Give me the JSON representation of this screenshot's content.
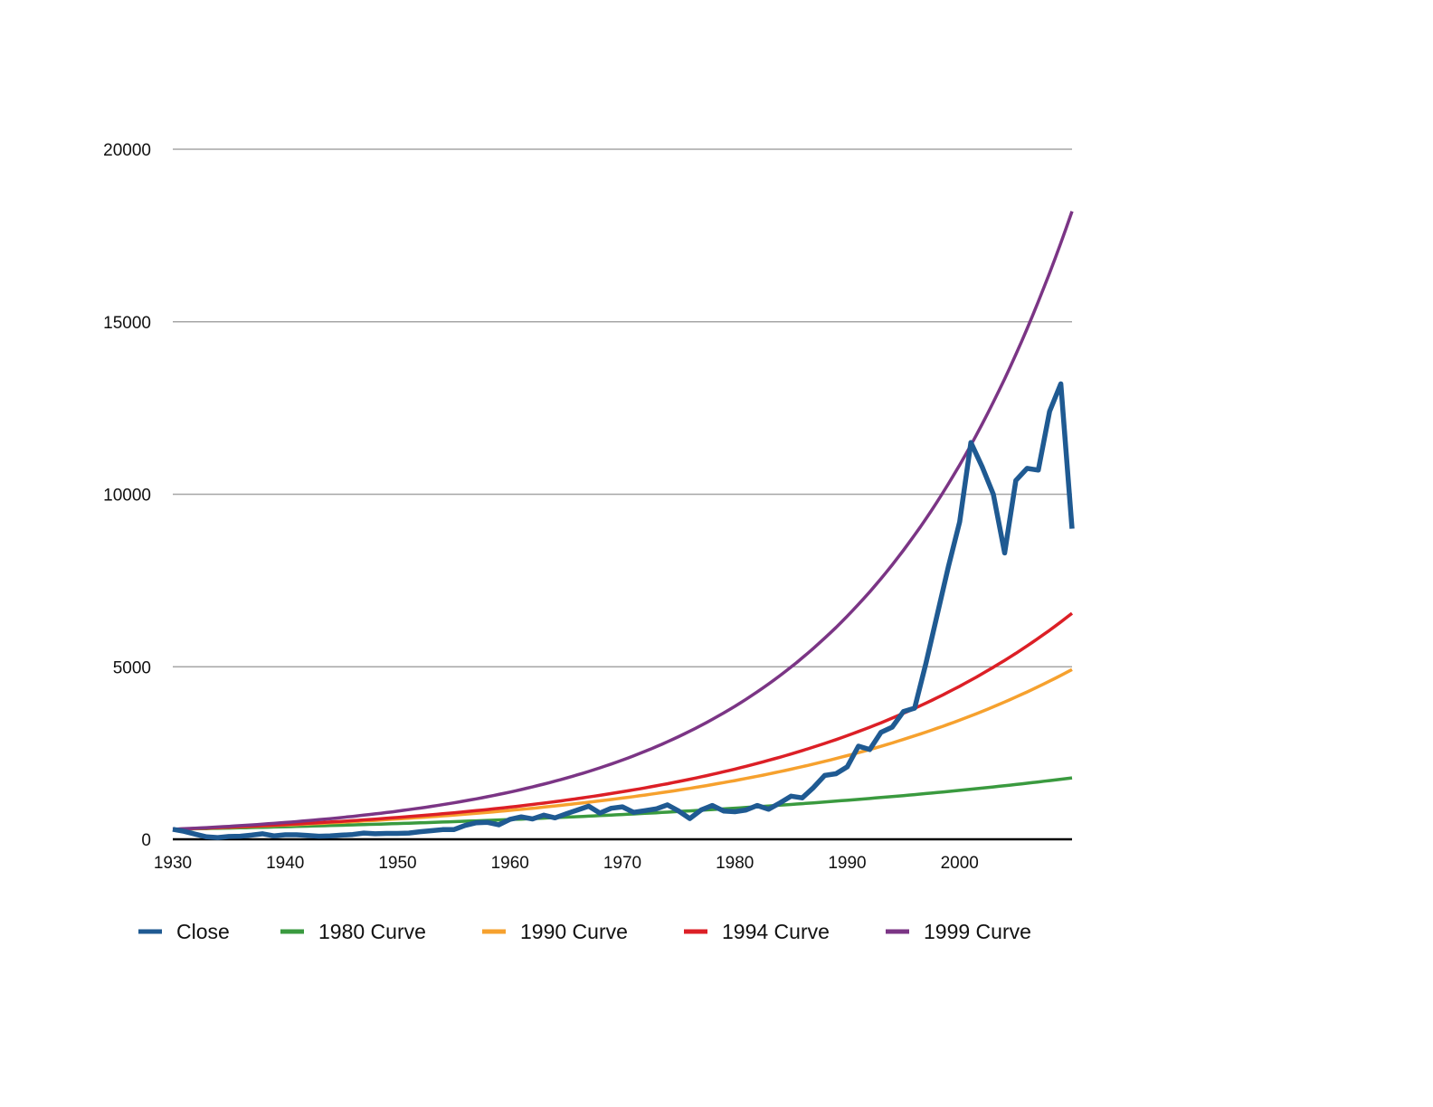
{
  "chart_data": {
    "type": "line",
    "title": "",
    "xlabel": "",
    "ylabel": "",
    "xlim": [
      1930,
      2010
    ],
    "ylim": [
      0,
      20000
    ],
    "x_ticks": [
      1930,
      1940,
      1950,
      1960,
      1970,
      1980,
      1990,
      2000
    ],
    "x_tick_labels": [
      "1930",
      "1940",
      "1950",
      "1960",
      "1970",
      "1980",
      "1990",
      "2000"
    ],
    "y_ticks": [
      0,
      5000,
      10000,
      15000,
      20000
    ],
    "y_tick_labels": [
      "0",
      "5000",
      "10000",
      "15000",
      "20000"
    ],
    "grid": true,
    "legend_position": "bottom",
    "series": [
      {
        "name": "Close",
        "color": "#1f5a92",
        "x": [
          1930,
          1931,
          1932,
          1933,
          1934,
          1935,
          1936,
          1937,
          1938,
          1939,
          1940,
          1941,
          1942,
          1943,
          1944,
          1945,
          1946,
          1947,
          1948,
          1949,
          1950,
          1951,
          1952,
          1953,
          1954,
          1955,
          1956,
          1957,
          1958,
          1959,
          1960,
          1961,
          1962,
          1963,
          1964,
          1965,
          1966,
          1967,
          1968,
          1969,
          1970,
          1971,
          1972,
          1973,
          1974,
          1975,
          1976,
          1977,
          1978,
          1979,
          1980,
          1981,
          1982,
          1983,
          1984,
          1985,
          1986,
          1987,
          1988,
          1989,
          1990,
          1991,
          1992,
          1993,
          1994,
          1995,
          1996,
          1997,
          1998,
          1999,
          2000,
          2001,
          2002,
          2003,
          2004,
          2005,
          2006,
          2007,
          2008,
          2009,
          2010
        ],
        "values": [
          290,
          230,
          150,
          70,
          50,
          80,
          90,
          120,
          160,
          100,
          130,
          130,
          110,
          90,
          100,
          120,
          140,
          180,
          160,
          170,
          170,
          180,
          220,
          250,
          280,
          280,
          400,
          480,
          490,
          420,
          580,
          650,
          590,
          700,
          620,
          740,
          850,
          960,
          760,
          900,
          940,
          780,
          830,
          880,
          1000,
          820,
          600,
          850,
          980,
          820,
          800,
          850,
          980,
          870,
          1050,
          1250,
          1200,
          1500,
          1850,
          1900,
          2100,
          2700,
          2600,
          3100,
          3250,
          3700,
          3800,
          5100,
          6500,
          7900,
          9200,
          11500,
          10800,
          10000,
          8300,
          10400,
          10750,
          10700,
          12400,
          13200,
          9000
        ]
      },
      {
        "name": "1980 Curve",
        "color": "#3a9a3f",
        "start_year": 1930,
        "start_value": 290,
        "end_year": 2010,
        "end_value": 1780
      },
      {
        "name": "1990 Curve",
        "color": "#f6a12e",
        "start_year": 1930,
        "start_value": 290,
        "end_year": 2010,
        "end_value": 4920
      },
      {
        "name": "1994 Curve",
        "color": "#dc1f26",
        "start_year": 1930,
        "start_value": 290,
        "end_year": 2010,
        "end_value": 6550
      },
      {
        "name": "1999 Curve",
        "color": "#7b3585",
        "start_year": 1930,
        "start_value": 290,
        "end_year": 2010,
        "end_value": 18200
      }
    ]
  }
}
